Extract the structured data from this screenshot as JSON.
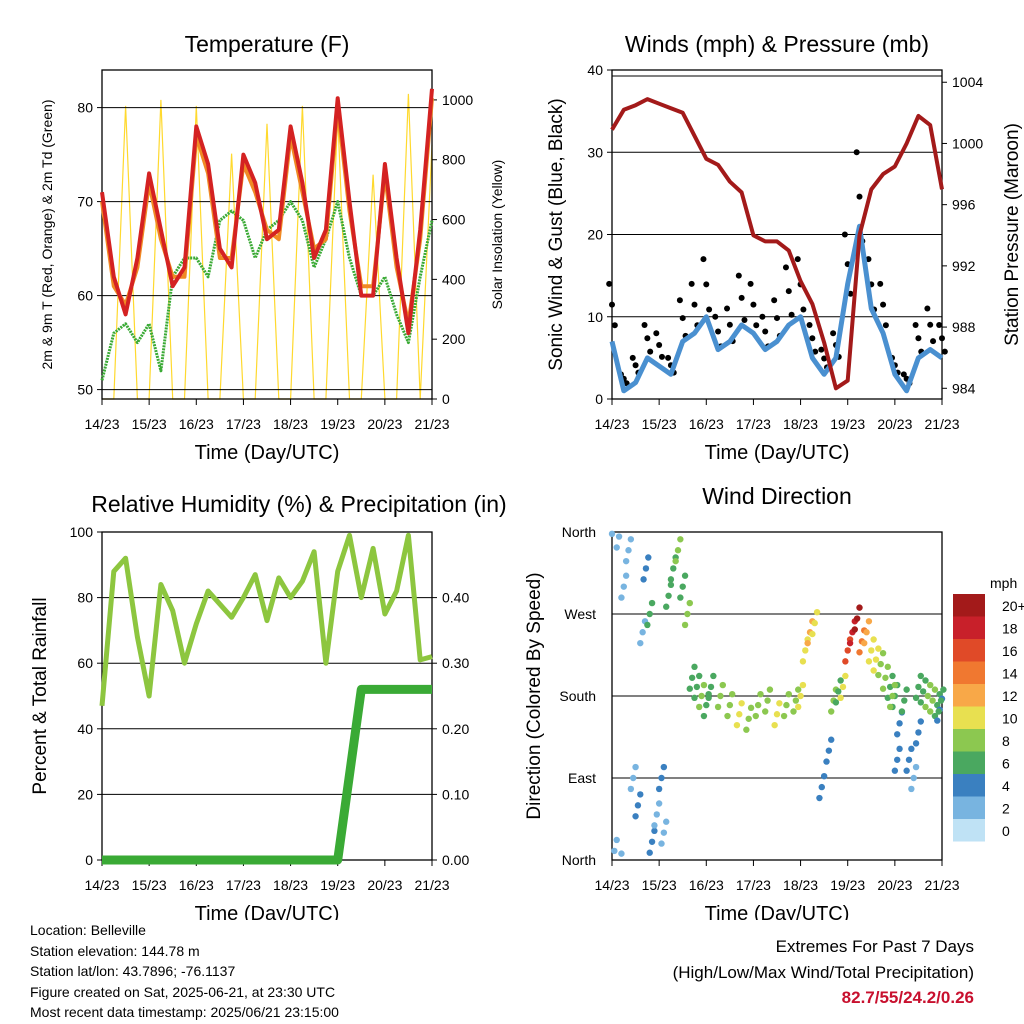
{
  "charts": {
    "temperature": {
      "title": "Temperature (F)",
      "xlabel": "Time (Day/UTC)",
      "ylabel_left": "2m & 9m T (Red, Orange) & 2m Td (Green)",
      "ylabel_right": "Solar Insolation (Yellow)"
    },
    "winds": {
      "title": "Winds (mph) & Pressure (mb)",
      "xlabel": "Time (Day/UTC)",
      "ylabel_left": "Sonic Wind & Gust (Blue, Black)",
      "ylabel_right": "Station Pressure (Maroon)"
    },
    "humidity": {
      "title": "Relative Humidity (%) & Precipitation (in)",
      "xlabel": "Time (Day/UTC)",
      "ylabel_left": "Percent & Total Rainfall"
    },
    "direction": {
      "title": "Wind Direction",
      "xlabel": "Time (Day/UTC)",
      "ylabel_left": "Direction (Colored By Speed)",
      "colorbar_title": "mph"
    }
  },
  "info": {
    "location": "Location: Belleville",
    "elevation": "Station elevation: 144.78 m",
    "latlon": "Station lat/lon: 43.7896; -76.1137",
    "created": "Figure created on Sat, 2025-06-21, at 23:30 UTC",
    "recent": "Most recent data timestamp: 2025/06/21 23:15:00"
  },
  "extremes": {
    "line1": "Extremes For Past 7 Days",
    "line2": "(High/Low/Max Wind/Total Precipitation)",
    "values": "82.7/55/24.2/0.26"
  },
  "chart_data": [
    {
      "id": "temperature",
      "type": "line",
      "x_ticks": [
        "14/23",
        "15/23",
        "16/23",
        "17/23",
        "18/23",
        "19/23",
        "20/23",
        "21/23"
      ],
      "x": [
        0,
        0.25,
        0.5,
        0.75,
        1,
        1.25,
        1.5,
        1.75,
        2,
        2.25,
        2.5,
        2.75,
        3,
        3.25,
        3.5,
        3.75,
        4,
        4.25,
        4.5,
        4.75,
        5,
        5.25,
        5.5,
        5.75,
        6,
        6.25,
        6.5,
        6.75,
        7
      ],
      "ylim": [
        49,
        84
      ],
      "yticks": [
        50,
        60,
        70,
        80
      ],
      "y2lim": [
        0,
        1100
      ],
      "y2ticks": [
        0,
        200,
        400,
        600,
        800,
        1000
      ],
      "series": [
        {
          "color": "#d42222",
          "values": [
            71,
            62,
            58,
            64,
            73,
            67,
            61,
            63,
            78,
            74,
            65,
            63,
            75,
            72,
            66,
            67,
            78,
            72,
            64,
            67,
            81,
            70,
            60,
            60,
            74,
            64,
            56,
            67,
            82
          ]
        },
        {
          "color": "#f08a24",
          "values": [
            70,
            61,
            59,
            63,
            72,
            66,
            62,
            62,
            77,
            73,
            64,
            64,
            74,
            71,
            67,
            66,
            77,
            71,
            65,
            66,
            80,
            69,
            61,
            61,
            73,
            63,
            57,
            66,
            81
          ]
        },
        {
          "color": "#3aaa35",
          "values": [
            51,
            56,
            57,
            55,
            57,
            52,
            62,
            64,
            64,
            62,
            68,
            69,
            68,
            64,
            67,
            68,
            70,
            68,
            63,
            66,
            70,
            64,
            60,
            60,
            62,
            58,
            55,
            62,
            68
          ]
        },
        {
          "color": "#ffd92e",
          "values": [
            0,
            0,
            980,
            0,
            0,
            1000,
            0,
            0,
            980,
            0,
            0,
            820,
            0,
            0,
            920,
            0,
            0,
            980,
            0,
            0,
            950,
            0,
            0,
            750,
            0,
            0,
            1020,
            0,
            850
          ]
        }
      ]
    },
    {
      "id": "winds",
      "type": "line",
      "x_ticks": [
        "14/23",
        "15/23",
        "16/23",
        "17/23",
        "18/23",
        "19/23",
        "20/23",
        "21/23"
      ],
      "x": [
        0,
        0.25,
        0.5,
        0.75,
        1,
        1.25,
        1.5,
        1.75,
        2,
        2.25,
        2.5,
        2.75,
        3,
        3.25,
        3.5,
        3.75,
        4,
        4.25,
        4.5,
        4.75,
        5,
        5.25,
        5.5,
        5.75,
        6,
        6.25,
        6.5,
        6.75,
        7
      ],
      "ylim": [
        0,
        40
      ],
      "yticks": [
        0,
        10,
        20,
        30,
        40
      ],
      "y2lim": [
        983.3,
        1004.8
      ],
      "y2ticks": [
        984,
        988,
        992,
        996,
        1000,
        1004
      ],
      "series": [
        {
          "color": "#000000",
          "values": [
            14,
            3,
            5,
            9,
            8,
            5,
            12,
            14,
            17,
            10,
            11,
            15,
            14,
            10,
            12,
            16,
            17,
            9,
            6,
            8,
            20,
            30,
            17,
            14,
            5,
            3,
            9,
            11,
            9
          ]
        },
        {
          "color": "#4a90d0",
          "values": [
            7,
            1,
            2,
            5,
            4,
            3,
            7,
            8,
            10,
            6,
            7,
            9,
            8,
            6,
            7,
            9,
            10,
            5,
            3,
            5,
            14,
            21,
            11,
            8,
            3,
            1,
            5,
            6,
            5
          ]
        },
        {
          "color": "#a31a1a",
          "values": [
            1000.9,
            1002.2,
            1002.5,
            1002.9,
            1002.6,
            1002.3,
            1002,
            1000.5,
            999,
            998.6,
            997.5,
            996.8,
            994,
            993.6,
            993.6,
            993,
            991,
            989.5,
            987,
            984,
            984.5,
            994,
            997,
            998,
            998.5,
            1000,
            1001.8,
            1001.2,
            997
          ]
        }
      ]
    },
    {
      "id": "humidity",
      "type": "line",
      "x_ticks": [
        "14/23",
        "15/23",
        "16/23",
        "17/23",
        "18/23",
        "19/23",
        "20/23",
        "21/23"
      ],
      "x": [
        0,
        0.25,
        0.5,
        0.75,
        1,
        1.25,
        1.5,
        1.75,
        2,
        2.25,
        2.5,
        2.75,
        3,
        3.25,
        3.5,
        3.75,
        4,
        4.25,
        4.5,
        4.75,
        5,
        5.25,
        5.5,
        5.75,
        6,
        6.25,
        6.5,
        6.75,
        7
      ],
      "ylim": [
        0,
        100
      ],
      "yticks": [
        0,
        20,
        40,
        60,
        80,
        100
      ],
      "y2lim": [
        0,
        0.5
      ],
      "y2ticks": [
        0,
        0.1,
        0.2,
        0.3,
        0.4
      ],
      "y2ticklabels": [
        "0.00",
        "0.10",
        "0.20",
        "0.30",
        "0.40"
      ],
      "series": [
        {
          "color": "#8dc63f",
          "values": [
            47,
            88,
            92,
            68,
            50,
            84,
            76,
            60,
            72,
            82,
            78,
            74,
            80,
            87,
            73,
            86,
            80,
            85,
            94,
            60,
            88,
            99,
            80,
            95,
            75,
            82,
            99,
            61,
            62
          ]
        },
        {
          "color": "#3aaa35",
          "values": [
            0,
            0,
            0,
            0,
            0,
            0,
            0,
            0,
            0,
            0,
            0,
            0,
            0,
            0,
            0,
            0,
            0,
            0,
            0,
            0,
            0,
            0.13,
            0.26,
            0.26,
            0.26,
            0.26,
            0.26,
            0.26,
            0.26
          ]
        }
      ]
    },
    {
      "id": "direction",
      "type": "scatter",
      "x_ticks": [
        "14/23",
        "15/23",
        "16/23",
        "17/23",
        "18/23",
        "19/23",
        "20/23",
        "21/23"
      ],
      "ylim": [
        0,
        360
      ],
      "yticklabels": [
        "North",
        "East",
        "South",
        "West",
        "North"
      ],
      "colorbar": {
        "labels": [
          "20+",
          "18",
          "16",
          "14",
          "12",
          "10",
          "8",
          "6",
          "4",
          "2",
          "0"
        ],
        "colors": [
          "#a31a1a",
          "#c8202a",
          "#e04a28",
          "#f07830",
          "#f8a848",
          "#e8e050",
          "#8cc850",
          "#4aa860",
          "#3a80c0",
          "#78b4e0",
          "#bfe2f5"
        ]
      },
      "series": [
        {
          "x": [
            0.05,
            0.15,
            0.25,
            0.35,
            0.45,
            0.55,
            0.65,
            0.72,
            0.8,
            0.85,
            0.95
          ],
          "y": [
            10,
            355,
            300,
            340,
            90,
            60,
            250,
            320,
            270,
            20,
            50
          ],
          "speed": [
            2,
            1,
            2,
            1,
            2,
            3,
            2,
            4,
            5,
            3,
            2
          ]
        },
        {
          "x": [
            1.05,
            1.1,
            1.2,
            1.3,
            1.4,
            1.5,
            1.6,
            1.7,
            1.8,
            1.9,
            2.0
          ],
          "y": [
            90,
            30,
            290,
            320,
            340,
            300,
            270,
            200,
            190,
            180,
            170
          ],
          "speed": [
            3,
            2,
            5,
            6,
            7,
            6,
            8,
            6,
            5,
            7,
            6
          ]
        },
        {
          "x": [
            2.1,
            2.3,
            2.5,
            2.7,
            2.9,
            3.1,
            3.3,
            3.5,
            3.7,
            3.9,
            4.0
          ],
          "y": [
            190,
            180,
            170,
            160,
            155,
            170,
            175,
            160,
            170,
            175,
            180
          ],
          "speed": [
            6,
            8,
            7,
            9,
            8,
            7,
            8,
            9,
            7,
            8,
            9
          ]
        },
        {
          "x": [
            4.1,
            4.2,
            4.3,
            4.45,
            4.6,
            4.7,
            4.8,
            4.9,
            5.0,
            5.1,
            5.2
          ],
          "y": [
            230,
            250,
            260,
            80,
            120,
            175,
            185,
            190,
            230,
            250,
            265
          ],
          "speed": [
            10,
            12,
            9,
            3,
            4,
            8,
            6,
            10,
            16,
            18,
            20
          ]
        },
        {
          "x": [
            5.3,
            5.4,
            5.5,
            5.6,
            5.7,
            5.8,
            5.9,
            6.0,
            6.1,
            6.3,
            6.5
          ],
          "y": [
            240,
            250,
            230,
            220,
            215,
            200,
            190,
            180,
            150,
            110,
            190
          ],
          "speed": [
            14,
            12,
            10,
            9,
            8,
            7,
            6,
            5,
            4,
            3,
            6
          ]
        },
        {
          "x": [
            6.6,
            6.7,
            6.8,
            6.9,
            6.95,
            6.98,
            6.5,
            6.4,
            6.2,
            6.05,
            5.95
          ],
          "y": [
            185,
            180,
            175,
            170,
            165,
            175,
            140,
            90,
            175,
            110,
            180
          ],
          "speed": [
            6,
            8,
            7,
            5,
            4,
            5,
            3,
            2,
            5,
            3,
            7
          ]
        }
      ]
    }
  ]
}
